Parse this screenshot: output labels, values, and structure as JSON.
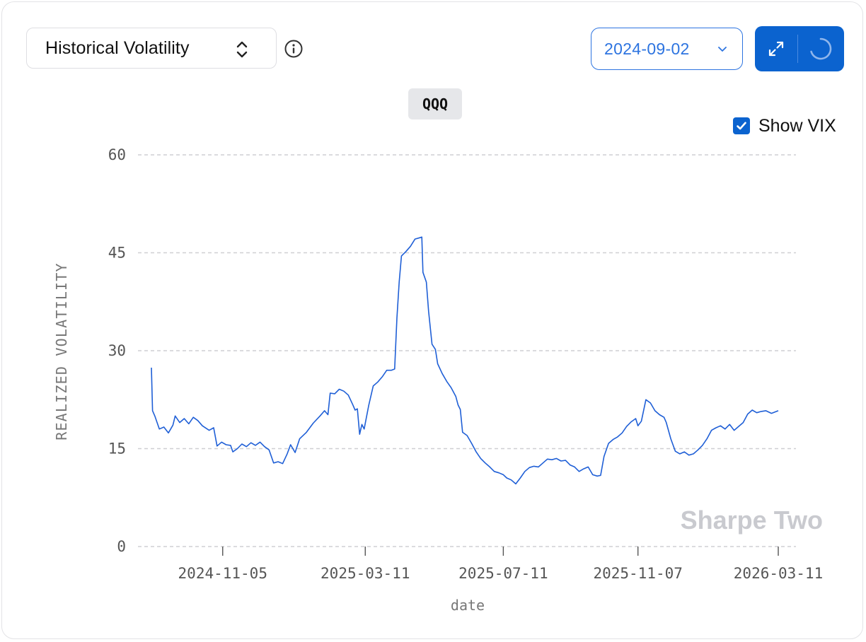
{
  "metric_select": {
    "label": "Historical Volatility"
  },
  "date_select": {
    "value": "2024-09-02"
  },
  "chart_toolbar": {
    "icons": [
      "expand-icon",
      "loading-spinner-icon"
    ]
  },
  "ticker": "QQQ",
  "vix_toggle": {
    "label": "Show VIX",
    "checked": true
  },
  "watermark": "Sharpe Two",
  "colors": {
    "line": "#1f5fd6",
    "accent": "#0b63cf",
    "grid": "#cfcfd3"
  },
  "chart_data": {
    "type": "line",
    "title": "QQQ",
    "xlabel": "date",
    "ylabel": "REALIZED VOLATILITY",
    "ylim": [
      0,
      60
    ],
    "yticks": [
      0,
      15,
      30,
      45,
      60
    ],
    "xticks": [
      "2024-11-05",
      "2025-03-11",
      "2025-07-11",
      "2025-11-07",
      "2026-03-11"
    ],
    "xlim": [
      "2024-09-03",
      "2026-03-11"
    ],
    "grid": "horizontal-dashed",
    "series": [
      {
        "name": "",
        "points": [
          [
            "2024-09-03",
            27.4
          ],
          [
            "2024-09-04",
            20.8
          ],
          [
            "2024-09-06",
            20.0
          ],
          [
            "2024-09-10",
            18.0
          ],
          [
            "2024-09-14",
            18.3
          ],
          [
            "2024-09-18",
            17.4
          ],
          [
            "2024-09-22",
            18.6
          ],
          [
            "2024-09-24",
            20.0
          ],
          [
            "2024-09-28",
            19.0
          ],
          [
            "2024-10-02",
            19.6
          ],
          [
            "2024-10-06",
            18.8
          ],
          [
            "2024-10-10",
            19.8
          ],
          [
            "2024-10-14",
            19.3
          ],
          [
            "2024-10-18",
            18.5
          ],
          [
            "2024-10-24",
            17.8
          ],
          [
            "2024-10-28",
            18.2
          ],
          [
            "2024-10-31",
            15.4
          ],
          [
            "2024-11-04",
            16.0
          ],
          [
            "2024-11-08",
            15.6
          ],
          [
            "2024-11-12",
            15.5
          ],
          [
            "2024-11-14",
            14.5
          ],
          [
            "2024-11-18",
            15.0
          ],
          [
            "2024-11-22",
            15.7
          ],
          [
            "2024-11-26",
            15.3
          ],
          [
            "2024-11-30",
            15.9
          ],
          [
            "2024-12-04",
            15.5
          ],
          [
            "2024-12-08",
            16.0
          ],
          [
            "2024-12-12",
            15.3
          ],
          [
            "2024-12-16",
            14.8
          ],
          [
            "2024-12-20",
            12.8
          ],
          [
            "2024-12-24",
            13.0
          ],
          [
            "2024-12-28",
            12.7
          ],
          [
            "2025-01-01",
            14.2
          ],
          [
            "2025-01-04",
            15.6
          ],
          [
            "2025-01-08",
            14.4
          ],
          [
            "2025-01-12",
            16.5
          ],
          [
            "2025-01-18",
            17.5
          ],
          [
            "2025-01-24",
            18.9
          ],
          [
            "2025-01-30",
            20.0
          ],
          [
            "2025-02-03",
            20.8
          ],
          [
            "2025-02-06",
            20.2
          ],
          [
            "2025-02-08",
            23.5
          ],
          [
            "2025-02-12",
            23.4
          ],
          [
            "2025-02-16",
            24.1
          ],
          [
            "2025-02-20",
            23.8
          ],
          [
            "2025-02-24",
            23.2
          ],
          [
            "2025-02-28",
            21.7
          ],
          [
            "2025-03-02",
            20.9
          ],
          [
            "2025-03-04",
            21.1
          ],
          [
            "2025-03-06",
            17.2
          ],
          [
            "2025-03-08",
            18.7
          ],
          [
            "2025-03-10",
            18.0
          ],
          [
            "2025-03-14",
            21.6
          ],
          [
            "2025-03-18",
            24.6
          ],
          [
            "2025-03-22",
            25.2
          ],
          [
            "2025-03-26",
            26.0
          ],
          [
            "2025-03-30",
            27.0
          ],
          [
            "2025-04-03",
            27.0
          ],
          [
            "2025-04-06",
            27.2
          ],
          [
            "2025-04-08",
            35.0
          ],
          [
            "2025-04-10",
            40.5
          ],
          [
            "2025-04-12",
            44.5
          ],
          [
            "2025-04-16",
            45.2
          ],
          [
            "2025-04-20",
            46.0
          ],
          [
            "2025-04-24",
            47.1
          ],
          [
            "2025-04-28",
            47.3
          ],
          [
            "2025-04-30",
            47.4
          ],
          [
            "2025-05-01",
            42.0
          ],
          [
            "2025-05-04",
            40.5
          ],
          [
            "2025-05-06",
            36.0
          ],
          [
            "2025-05-09",
            31.0
          ],
          [
            "2025-05-12",
            30.2
          ],
          [
            "2025-05-14",
            28.0
          ],
          [
            "2025-05-18",
            26.5
          ],
          [
            "2025-05-22",
            25.3
          ],
          [
            "2025-05-26",
            24.3
          ],
          [
            "2025-05-30",
            23.0
          ],
          [
            "2025-06-01",
            21.7
          ],
          [
            "2025-06-03",
            21.0
          ],
          [
            "2025-06-05",
            17.5
          ],
          [
            "2025-06-09",
            17.0
          ],
          [
            "2025-06-13",
            15.8
          ],
          [
            "2025-06-17",
            14.5
          ],
          [
            "2025-06-21",
            13.5
          ],
          [
            "2025-06-25",
            12.8
          ],
          [
            "2025-06-29",
            12.2
          ],
          [
            "2025-07-03",
            11.5
          ],
          [
            "2025-07-07",
            11.3
          ],
          [
            "2025-07-11",
            11.0
          ],
          [
            "2025-07-14",
            10.5
          ],
          [
            "2025-07-18",
            10.2
          ],
          [
            "2025-07-22",
            9.6
          ],
          [
            "2025-07-26",
            10.5
          ],
          [
            "2025-07-30",
            11.5
          ],
          [
            "2025-08-03",
            12.1
          ],
          [
            "2025-08-07",
            12.3
          ],
          [
            "2025-08-11",
            12.2
          ],
          [
            "2025-08-15",
            12.8
          ],
          [
            "2025-08-19",
            13.4
          ],
          [
            "2025-08-23",
            13.3
          ],
          [
            "2025-08-27",
            13.5
          ],
          [
            "2025-08-31",
            13.1
          ],
          [
            "2025-09-04",
            13.2
          ],
          [
            "2025-09-08",
            12.5
          ],
          [
            "2025-09-12",
            12.2
          ],
          [
            "2025-09-16",
            11.5
          ],
          [
            "2025-09-20",
            11.9
          ],
          [
            "2025-09-24",
            12.2
          ],
          [
            "2025-09-28",
            11.0
          ],
          [
            "2025-10-02",
            10.8
          ],
          [
            "2025-10-05",
            10.9
          ],
          [
            "2025-10-08",
            13.8
          ],
          [
            "2025-10-12",
            15.8
          ],
          [
            "2025-10-16",
            16.4
          ],
          [
            "2025-10-20",
            16.8
          ],
          [
            "2025-10-24",
            17.4
          ],
          [
            "2025-10-28",
            18.4
          ],
          [
            "2025-11-01",
            19.1
          ],
          [
            "2025-11-05",
            19.6
          ],
          [
            "2025-11-07",
            18.5
          ],
          [
            "2025-11-10",
            19.2
          ],
          [
            "2025-11-14",
            22.5
          ],
          [
            "2025-11-18",
            22.0
          ],
          [
            "2025-11-22",
            20.8
          ],
          [
            "2025-11-26",
            20.2
          ],
          [
            "2025-11-30",
            19.8
          ],
          [
            "2025-12-02",
            19.0
          ],
          [
            "2025-12-06",
            16.5
          ],
          [
            "2025-12-10",
            14.6
          ],
          [
            "2025-12-14",
            14.2
          ],
          [
            "2025-12-18",
            14.5
          ],
          [
            "2025-12-22",
            14.0
          ],
          [
            "2025-12-26",
            14.2
          ],
          [
            "2025-12-30",
            14.8
          ],
          [
            "2026-01-03",
            15.5
          ],
          [
            "2026-01-07",
            16.5
          ],
          [
            "2026-01-11",
            17.8
          ],
          [
            "2026-01-15",
            18.2
          ],
          [
            "2026-01-19",
            18.5
          ],
          [
            "2026-01-23",
            18.0
          ],
          [
            "2026-01-27",
            18.7
          ],
          [
            "2026-01-31",
            17.8
          ],
          [
            "2026-02-04",
            18.4
          ],
          [
            "2026-02-08",
            19.0
          ],
          [
            "2026-02-12",
            20.3
          ],
          [
            "2026-02-16",
            20.9
          ],
          [
            "2026-02-20",
            20.5
          ],
          [
            "2026-02-24",
            20.7
          ],
          [
            "2026-02-28",
            20.8
          ],
          [
            "2026-03-05",
            20.4
          ],
          [
            "2026-03-11",
            20.8
          ]
        ]
      }
    ]
  }
}
